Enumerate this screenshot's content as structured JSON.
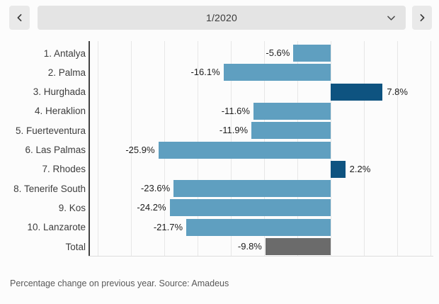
{
  "header": {
    "selected_period": "1/2020",
    "prev_icon": "chevron-left",
    "next_icon": "chevron-right",
    "dropdown_icon": "chevron-down"
  },
  "chart_data": {
    "type": "bar",
    "orientation": "horizontal",
    "categories": [
      "1. Antalya",
      "2. Palma",
      "3. Hurghada",
      "4. Heraklion",
      "5. Fuerteventura",
      "6. Las Palmas",
      "7. Rhodes",
      "8. Tenerife South",
      "9. Kos",
      "10. Lanzarote",
      "Total"
    ],
    "values": [
      -5.6,
      -16.1,
      7.8,
      -11.6,
      -11.9,
      -25.9,
      2.2,
      -23.6,
      -24.2,
      -21.7,
      -9.8
    ],
    "value_labels": [
      "-5.6%",
      "-16.1%",
      "7.8%",
      "-11.6%",
      "-11.9%",
      "-25.9%",
      "2.2%",
      "-23.6%",
      "-24.2%",
      "-21.7%",
      "-9.8%"
    ],
    "bar_colors": [
      "#5f9fc0",
      "#5f9fc0",
      "#0e5380",
      "#5f9fc0",
      "#5f9fc0",
      "#5f9fc0",
      "#0e5380",
      "#5f9fc0",
      "#5f9fc0",
      "#5f9fc0",
      "#6b6b6b"
    ],
    "color_legend": {
      "negative": "#5f9fc0",
      "positive": "#0e5380",
      "total": "#6b6b6b"
    },
    "xlim": [
      -35,
      15
    ],
    "grid_step": 5,
    "grid": true,
    "title": "",
    "xlabel": "",
    "ylabel": ""
  },
  "footer": {
    "note": "Percentage change on previous year. Source: Amadeus"
  }
}
